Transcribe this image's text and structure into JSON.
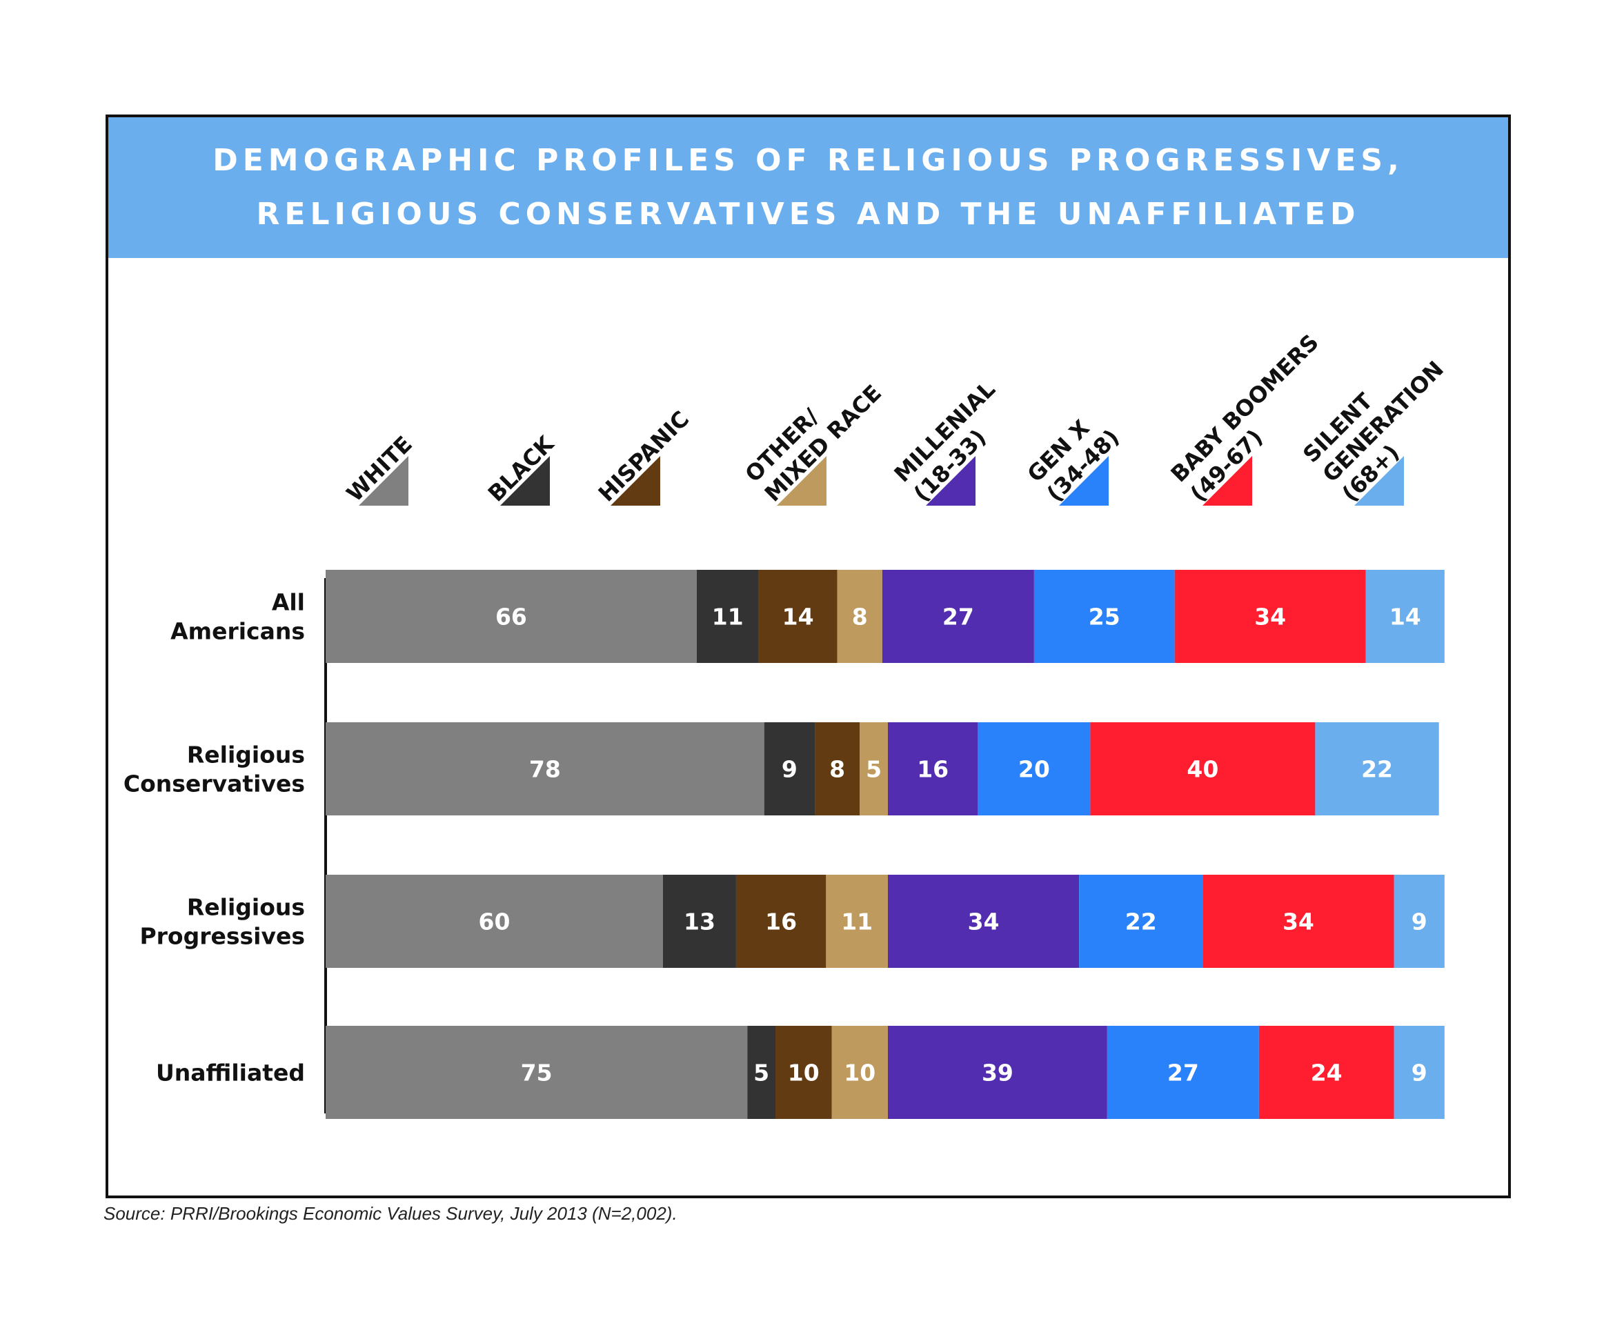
{
  "title_lines": [
    "DEMOGRAPHIC PROFILES OF RELIGIOUS PROGRESSIVES,",
    "RELIGIOUS CONSERVATIVES AND THE UNAFFILIATED"
  ],
  "source": "Source: PRRI/Brookings Economic Values Survey, July 2013 (N=2,002).",
  "chart_data": {
    "type": "bar",
    "orientation": "horizontal",
    "stacked": true,
    "legend_placement": "top",
    "grid": false,
    "categories": [
      [
        "All",
        "Americans"
      ],
      [
        "Religious",
        "Conservatives"
      ],
      [
        "Religious",
        "Progressives"
      ],
      [
        "Unaffiliated"
      ]
    ],
    "series": [
      {
        "name": [
          "WHITE"
        ],
        "color": "#808080",
        "values": [
          66,
          78,
          60,
          75
        ]
      },
      {
        "name": [
          "BLACK"
        ],
        "color": "#333333",
        "values": [
          11,
          9,
          13,
          5
        ]
      },
      {
        "name": [
          "HISPANIC"
        ],
        "color": "#623b13",
        "values": [
          14,
          8,
          16,
          10
        ]
      },
      {
        "name": [
          "OTHER/",
          "MIXED RACE"
        ],
        "color": "#bf9a5e",
        "values": [
          8,
          5,
          11,
          10
        ]
      },
      {
        "name": [
          "MILLENIAL",
          "(18-33)"
        ],
        "color": "#522daf",
        "values": [
          27,
          16,
          34,
          39
        ]
      },
      {
        "name": [
          "GEN X",
          "(34-48)"
        ],
        "color": "#2a82fa",
        "values": [
          25,
          20,
          22,
          27
        ]
      },
      {
        "name": [
          "BABY BOOMERS",
          "(49-67)"
        ],
        "color": "#fe1e2f",
        "values": [
          34,
          40,
          34,
          24
        ]
      },
      {
        "name": [
          "SILENT",
          "GENERATION",
          "(68+)"
        ],
        "color": "#6aaeed",
        "values": [
          14,
          22,
          9,
          9
        ]
      }
    ]
  }
}
